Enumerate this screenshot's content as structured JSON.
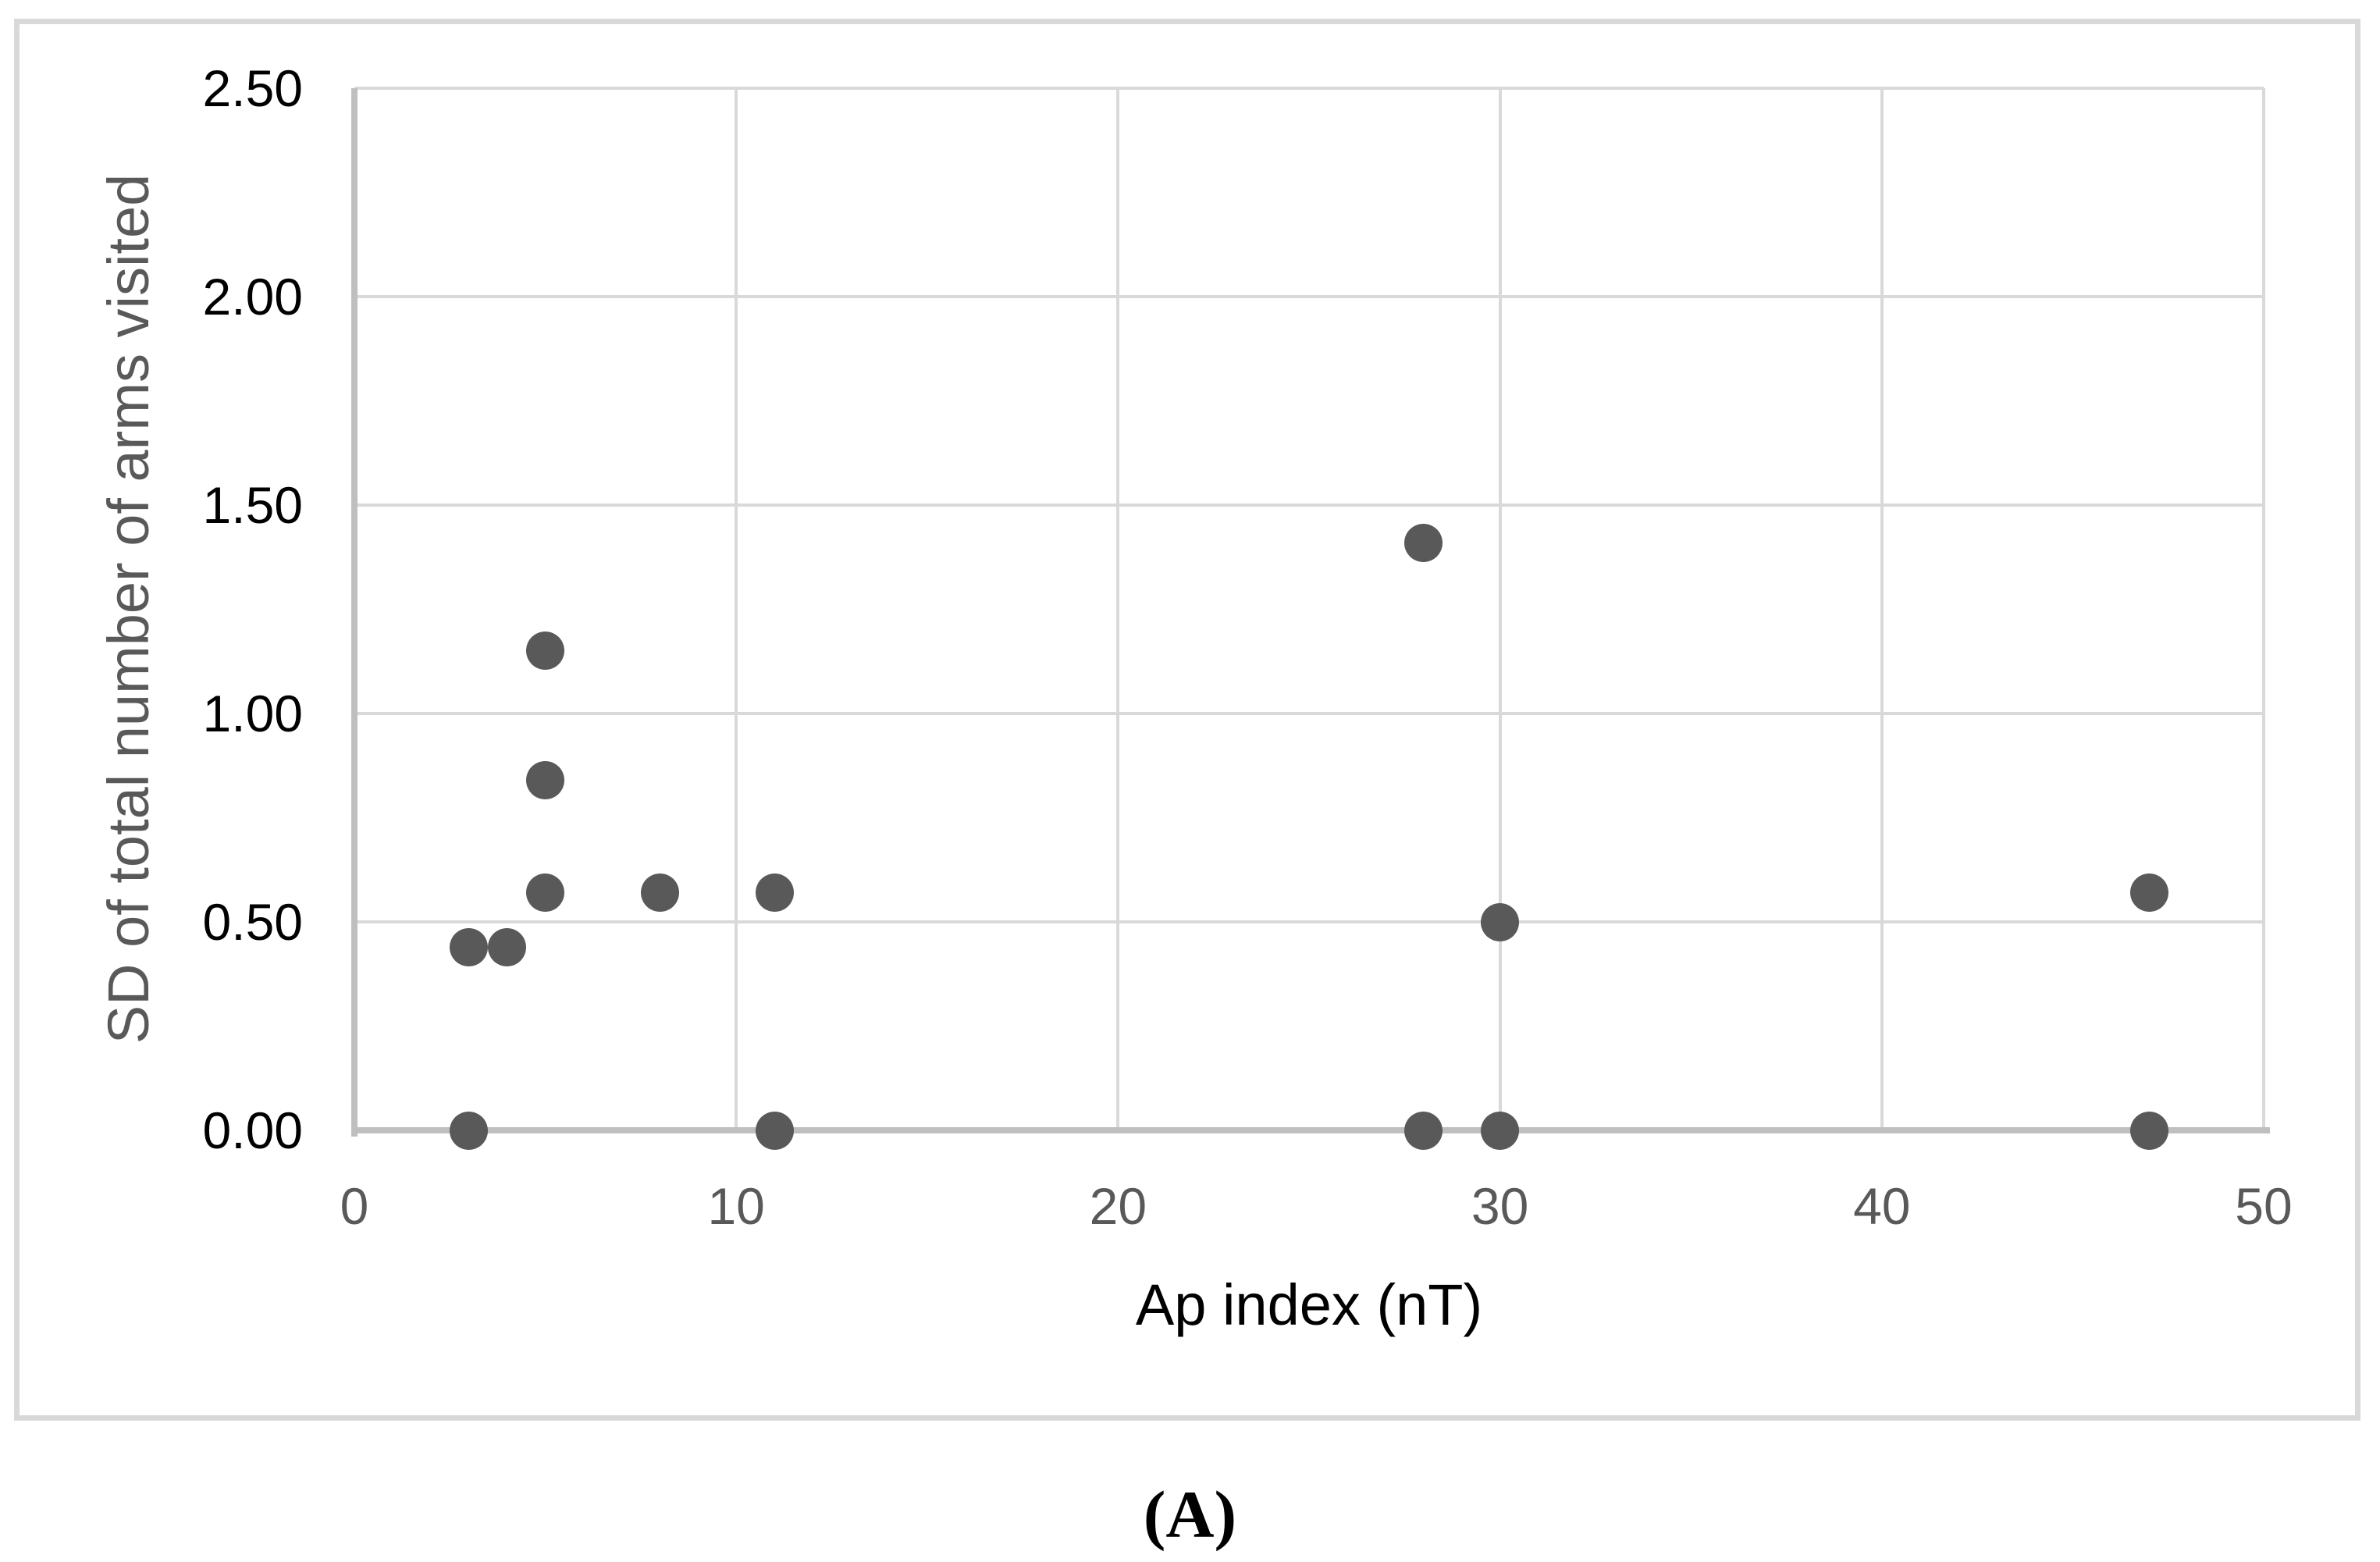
{
  "figure": {
    "caption": "(A)"
  },
  "chart_data": {
    "type": "scatter",
    "title": "",
    "xlabel": "Ap index (nT)",
    "ylabel": "SD of total number of arms visited",
    "xlim": [
      0,
      50
    ],
    "ylim": [
      0,
      2.5
    ],
    "x_ticks": [
      0,
      10,
      20,
      30,
      40,
      50
    ],
    "y_ticks": [
      "0.00",
      "0.50",
      "1.00",
      "1.50",
      "2.00",
      "2.50"
    ],
    "grid": true,
    "legend_position": "none",
    "points": [
      {
        "x": 3,
        "y": 0.0
      },
      {
        "x": 3,
        "y": 0.44
      },
      {
        "x": 4,
        "y": 0.44
      },
      {
        "x": 5,
        "y": 0.57
      },
      {
        "x": 5,
        "y": 0.84
      },
      {
        "x": 5,
        "y": 1.15
      },
      {
        "x": 8,
        "y": 0.57
      },
      {
        "x": 11,
        "y": 0.0
      },
      {
        "x": 11,
        "y": 0.57
      },
      {
        "x": 28,
        "y": 0.0
      },
      {
        "x": 28,
        "y": 1.41
      },
      {
        "x": 30,
        "y": 0.0
      },
      {
        "x": 30,
        "y": 0.5
      },
      {
        "x": 47,
        "y": 0.0
      },
      {
        "x": 47,
        "y": 0.57
      }
    ],
    "colors": {
      "marker": "#595959",
      "gridline": "#d9d9d9",
      "axis_line": "#bfbfbf",
      "x_tick_label": "#595959",
      "y_tick_label": "#000000",
      "x_axis_title": "#000000",
      "y_axis_title": "#595959",
      "chart_border": "#d9d9d9",
      "background": "#ffffff"
    }
  }
}
